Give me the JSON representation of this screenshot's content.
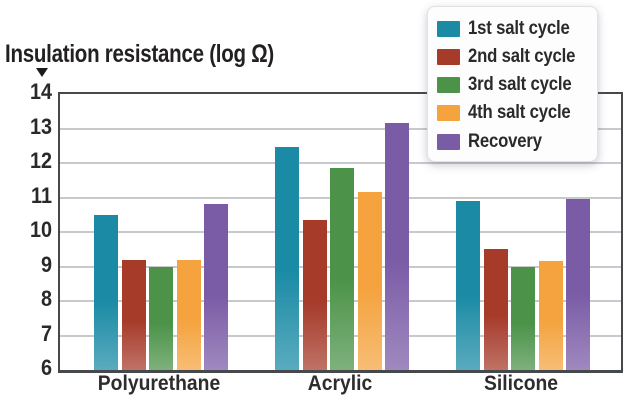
{
  "chart_data": {
    "type": "bar",
    "title": "Insulation resistance (log Ω)",
    "axis_marker": "▼",
    "categories": [
      "Polyurethane",
      "Acrylic",
      "Silicone"
    ],
    "series": [
      {
        "name": "1st salt cycle",
        "color": "#1a8aa5",
        "values": [
          10.5,
          12.45,
          10.9
        ]
      },
      {
        "name": "2nd salt cycle",
        "color": "#a63b2a",
        "values": [
          9.2,
          10.35,
          9.5
        ]
      },
      {
        "name": "3rd salt cycle",
        "color": "#4c9349",
        "values": [
          9.0,
          11.85,
          9.0
        ]
      },
      {
        "name": "4th salt cycle",
        "color": "#f4a33f",
        "values": [
          9.2,
          11.15,
          9.15
        ]
      },
      {
        "name": "Recovery",
        "color": "#7a5ba6",
        "values": [
          10.8,
          13.15,
          10.95
        ]
      }
    ],
    "ylim": [
      6,
      14
    ],
    "yticks": [
      6,
      7,
      8,
      9,
      10,
      11,
      12,
      13,
      14
    ],
    "grid": true,
    "legend_position": "top-right",
    "colors": {
      "gridline": "#c7c9cc",
      "plot_border": "#46494b",
      "text": "#2a2829",
      "legend_background": "#fdfdfe"
    }
  }
}
